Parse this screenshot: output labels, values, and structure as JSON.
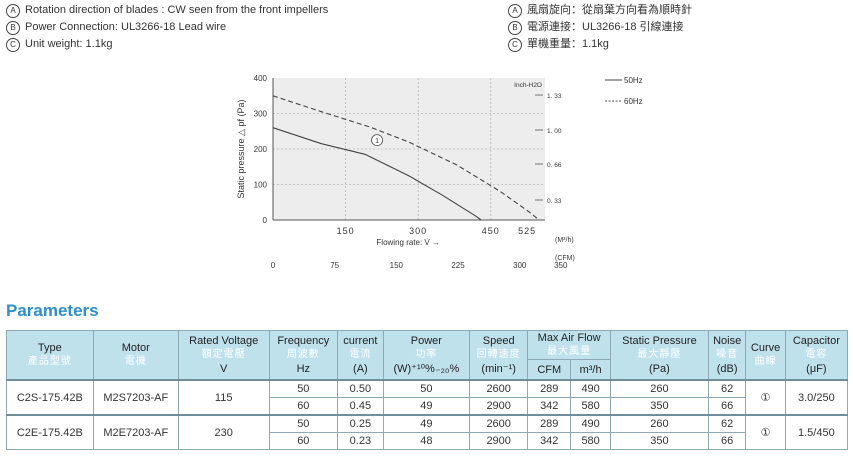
{
  "notes_en": [
    {
      "marker": "A",
      "text": "Rotation direction of blades : CW seen from the front impellers"
    },
    {
      "marker": "B",
      "text": "Power Connection: UL3266-18 Lead wire"
    },
    {
      "marker": "C",
      "text": "Unit weight: 1.1kg"
    }
  ],
  "notes_zh": [
    {
      "marker": "A",
      "text": "風扇旋向：從扇葉方向看為順時針"
    },
    {
      "marker": "B",
      "text": "電源連接：UL3266-18 引線連接"
    },
    {
      "marker": "C",
      "text": "單機重量：1.1kg"
    }
  ],
  "chart_data": {
    "type": "line",
    "ylabel": "Static pressure △ pf (Pa)",
    "ylim": [
      0,
      400
    ],
    "yticks": [
      "400",
      "300",
      "200",
      "100",
      "0"
    ],
    "xlabel": "Flowing rate: V̇ →",
    "xlim": [
      0,
      562
    ],
    "x_unit_m3h": "(M³/h)",
    "xticks_m3h": [
      "150",
      "300",
      "450",
      "525"
    ],
    "x_unit_cfm": "(CFM)",
    "xticks_cfm": [
      "0",
      "75",
      "150",
      "225",
      "300",
      "350"
    ],
    "right_unit": "Inch-H2O",
    "right_ticks": [
      "1. 33",
      "1. 00",
      "0. 66",
      "0. 33"
    ],
    "curve_marker": "1",
    "series": [
      {
        "name": "50Hz",
        "style": "solid",
        "points": [
          [
            0,
            260
          ],
          [
            100,
            215
          ],
          [
            190,
            185
          ],
          [
            280,
            125
          ],
          [
            350,
            70
          ],
          [
            420,
            10
          ],
          [
            430,
            0
          ]
        ]
      },
      {
        "name": "60Hz",
        "style": "dashed",
        "points": [
          [
            0,
            350
          ],
          [
            100,
            305
          ],
          [
            200,
            262
          ],
          [
            280,
            220
          ],
          [
            380,
            155
          ],
          [
            470,
            80
          ],
          [
            530,
            22
          ],
          [
            550,
            0
          ]
        ]
      }
    ]
  },
  "params_title": "Parameters",
  "table": {
    "headers": [
      {
        "en": "Type",
        "zh": "產品型號",
        "unit": ""
      },
      {
        "en": "Motor",
        "zh": "電機",
        "unit": ""
      },
      {
        "en": "Rated Voltage",
        "zh": "額定電壓",
        "unit": "V"
      },
      {
        "en": "Frequency",
        "zh": "周波數",
        "unit": "Hz"
      },
      {
        "en": "current",
        "zh": "電流",
        "unit": "(A)"
      },
      {
        "en": "Power",
        "zh": "功率",
        "unit": "(W)⁺¹⁰%₋₂₀%"
      },
      {
        "en": "Speed",
        "zh": "回轉速度",
        "unit": "(min⁻¹)"
      },
      {
        "en": "Max Air Flow",
        "zh": "最大風量",
        "unit_cfm": "CFM",
        "unit_m3h": "m³/h"
      },
      {
        "en": "Static Pressure",
        "zh": "最大靜壓",
        "unit": "(Pa)"
      },
      {
        "en": "Noise",
        "zh": "噪音",
        "unit": "(dB)"
      },
      {
        "en": "Curve",
        "zh": "曲線",
        "unit": ""
      },
      {
        "en": "Capacitor",
        "zh": "電容",
        "unit": "(μF)"
      }
    ],
    "models": [
      {
        "type": "C2S-175.42B",
        "motor": "M2S7203-AF",
        "voltage": "115",
        "curve": "①",
        "capacitor": "3.0/250",
        "rows": [
          {
            "freq": "50",
            "current": "0.50",
            "power": "50",
            "speed": "2600",
            "cfm": "289",
            "m3h": "490",
            "pressure": "260",
            "noise": "62"
          },
          {
            "freq": "60",
            "current": "0.45",
            "power": "49",
            "speed": "2900",
            "cfm": "342",
            "m3h": "580",
            "pressure": "350",
            "noise": "66"
          }
        ]
      },
      {
        "type": "C2E-175.42B",
        "motor": "M2E7203-AF",
        "voltage": "230",
        "curve": "①",
        "capacitor": "1.5/450",
        "rows": [
          {
            "freq": "50",
            "current": "0.25",
            "power": "49",
            "speed": "2600",
            "cfm": "289",
            "m3h": "490",
            "pressure": "260",
            "noise": "62"
          },
          {
            "freq": "60",
            "current": "0.23",
            "power": "48",
            "speed": "2900",
            "cfm": "342",
            "m3h": "580",
            "pressure": "350",
            "noise": "66"
          }
        ]
      }
    ]
  }
}
